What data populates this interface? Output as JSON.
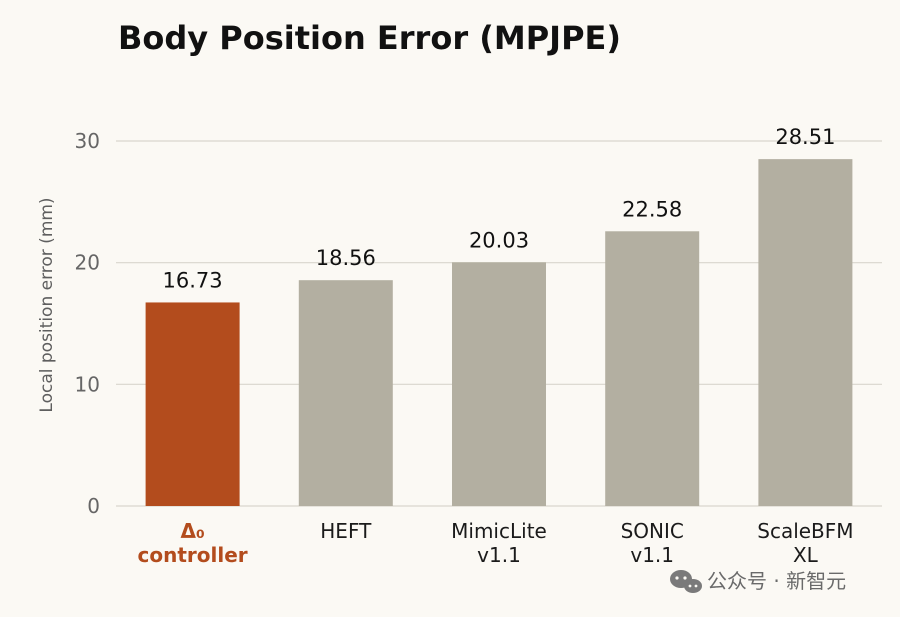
{
  "chart_data": {
    "type": "bar",
    "title": "Body Position Error (MPJPE)",
    "ylabel": "Local position error (mm)",
    "ylim": [
      0,
      30
    ],
    "yticks": [
      0,
      10,
      20,
      30
    ],
    "categories": [
      [
        "Δ₀",
        "controller"
      ],
      [
        "HEFT"
      ],
      [
        "MimicLite",
        "v1.1"
      ],
      [
        "SONIC",
        "v1.1"
      ],
      [
        "ScaleBFM",
        "XL"
      ]
    ],
    "values": [
      16.73,
      18.56,
      20.03,
      22.58,
      28.51
    ],
    "value_labels": [
      "16.73",
      "18.56",
      "20.03",
      "22.58",
      "28.51"
    ],
    "highlight_index": 0,
    "colors": {
      "highlight": "#b34c1d",
      "default": "#b3afa1",
      "grid": "#d9d6cd",
      "highlight_text": "#b34c1d"
    },
    "grid": true
  },
  "watermark": {
    "text": "公众号 · 新智元",
    "icon": "wechat-icon"
  }
}
